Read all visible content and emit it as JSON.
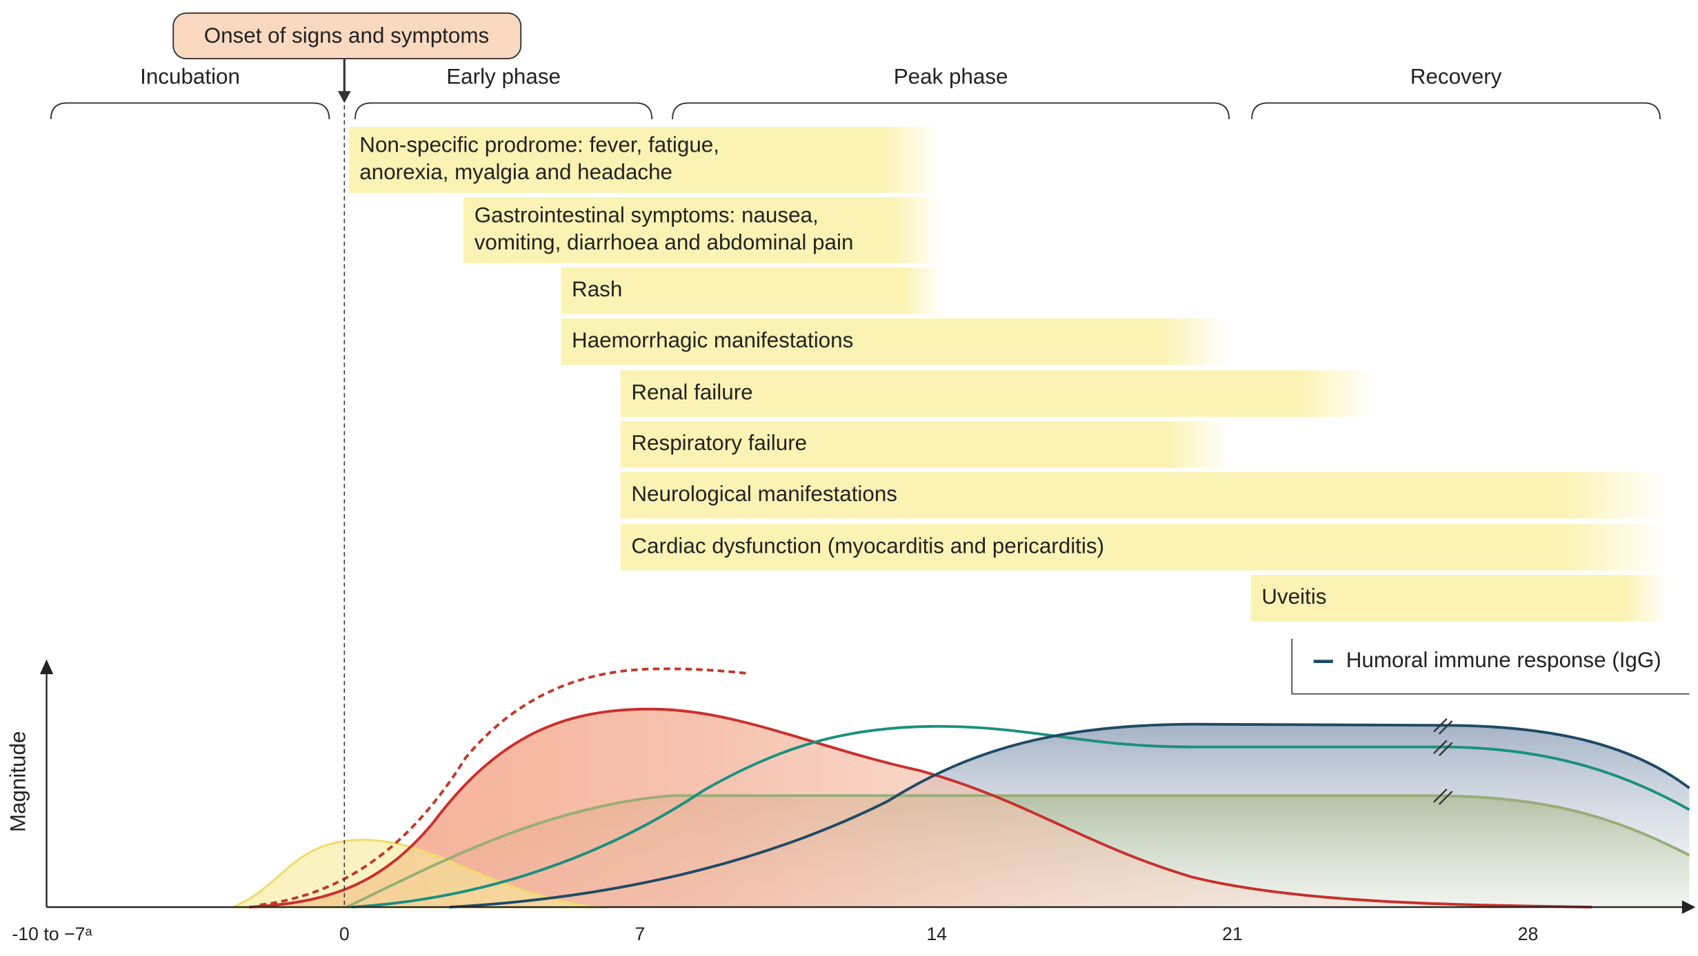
{
  "onset_label": "Onset of signs and symptoms",
  "phases": [
    "Incubation",
    "Early phase",
    "Peak phase",
    "Recovery"
  ],
  "symptoms": [
    [
      "Non-specific prodrome: fever, fatigue,",
      "anorexia, myalgia and headache"
    ],
    [
      "Gastrointestinal symptoms: nausea,",
      "vomiting, diarrhoea and abdominal pain"
    ],
    [
      "Rash"
    ],
    [
      "Haemorrhagic manifestations"
    ],
    [
      "Renal failure"
    ],
    [
      "Respiratory failure"
    ],
    [
      "Neurological manifestations"
    ],
    [
      "Cardiac dysfunction (myocarditis and pericarditis)"
    ],
    [
      "Uveitis"
    ]
  ],
  "legend": {
    "items": [
      "Humoral immune response (IgG)"
    ]
  },
  "axis": {
    "y_label": "Magnitude",
    "x_ticks": [
      "-10 to −7ᵃ",
      "0",
      "7",
      "14",
      "21",
      "28"
    ]
  }
}
